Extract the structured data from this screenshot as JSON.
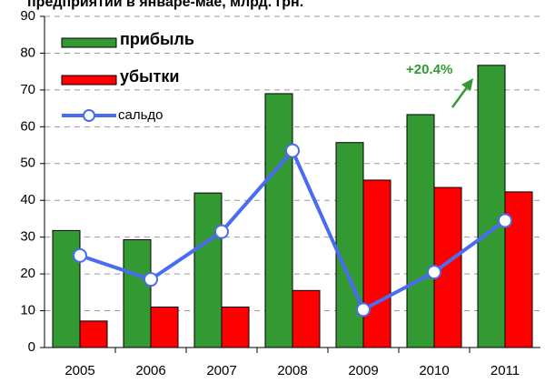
{
  "chart_data": {
    "type": "bar",
    "title": "предприятий в январе-мае, млрд. грн.",
    "categories": [
      "2005",
      "2006",
      "2007",
      "2008",
      "2009",
      "2010",
      "2011"
    ],
    "series": [
      {
        "name": "прибыль",
        "color": "#339933",
        "values": [
          31.8,
          29.3,
          42,
          69,
          55.7,
          63.3,
          76.7
        ]
      },
      {
        "name": "убытки",
        "color": "#ff0000",
        "values": [
          7.2,
          11,
          11,
          15.5,
          45.5,
          43.5,
          42.3
        ]
      },
      {
        "name": "сальдо",
        "color": "#4a6cf0",
        "type": "line",
        "values": [
          25,
          18.5,
          31.5,
          53.5,
          10.3,
          20.5,
          34.5
        ]
      }
    ],
    "annotation": "+20.4%",
    "ylim": [
      0,
      90
    ],
    "yticks": [
      0,
      10,
      20,
      30,
      40,
      50,
      60,
      70,
      80,
      90
    ],
    "grid": true
  }
}
